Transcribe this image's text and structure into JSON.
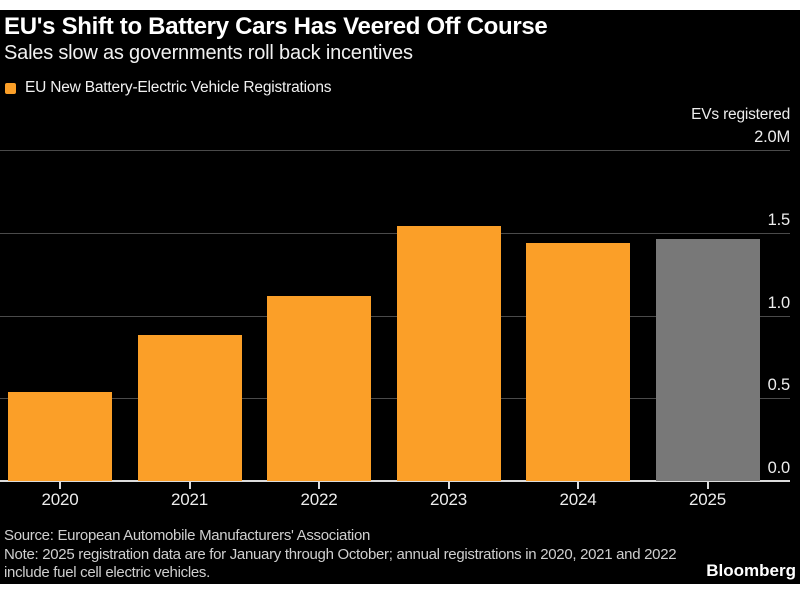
{
  "header": {
    "title": "EU's Shift to Battery Cars Has Veered Off Course",
    "subtitle": "Sales slow as governments roll back incentives"
  },
  "legend": {
    "label": "EU New Battery-Electric Vehicle Registrations",
    "swatch_color": "#FB9F28"
  },
  "axis": {
    "title": "EVs registered",
    "ticks": [
      {
        "label": "2.0M",
        "value": 2.0
      },
      {
        "label": "1.5",
        "value": 1.5
      },
      {
        "label": "1.0",
        "value": 1.0
      },
      {
        "label": "0.5",
        "value": 0.5
      },
      {
        "label": "0.0",
        "value": 0.0
      }
    ]
  },
  "chart_data": {
    "type": "bar",
    "title": "EU New Battery-Electric Vehicle Registrations",
    "categories": [
      "2020",
      "2021",
      "2022",
      "2023",
      "2024",
      "2025"
    ],
    "values": [
      0.54,
      0.88,
      1.12,
      1.54,
      1.44,
      1.46
    ],
    "unit": "millions of EVs registered",
    "ylabel": "EVs registered",
    "ylim": [
      0,
      2.0
    ],
    "grid": true,
    "legend_position": "top-left",
    "bar_colors": [
      "#FB9F28",
      "#FB9F28",
      "#FB9F28",
      "#FB9F28",
      "#FB9F28",
      "#787878"
    ],
    "highlight": "2025 bar shown in gray (partial-year data)"
  },
  "footer": {
    "source": "Source: European Automobile Manufacturers' Association",
    "note": "Note: 2025 registration data are for January through October; annual registrations in 2020, 2021 and 2022 include fuel cell electric vehicles.",
    "brand": "Bloomberg"
  },
  "colors": {
    "page_background": "#ffffff",
    "canvas_background": "#000000",
    "bar_orange": "#FB9F28",
    "bar_gray": "#787878",
    "gridline": "#4a4a4a",
    "axis_line": "#dcdcdc",
    "text_primary": "#ffffff",
    "text_secondary": "#ededed",
    "note_text": "#cfcfcf"
  }
}
